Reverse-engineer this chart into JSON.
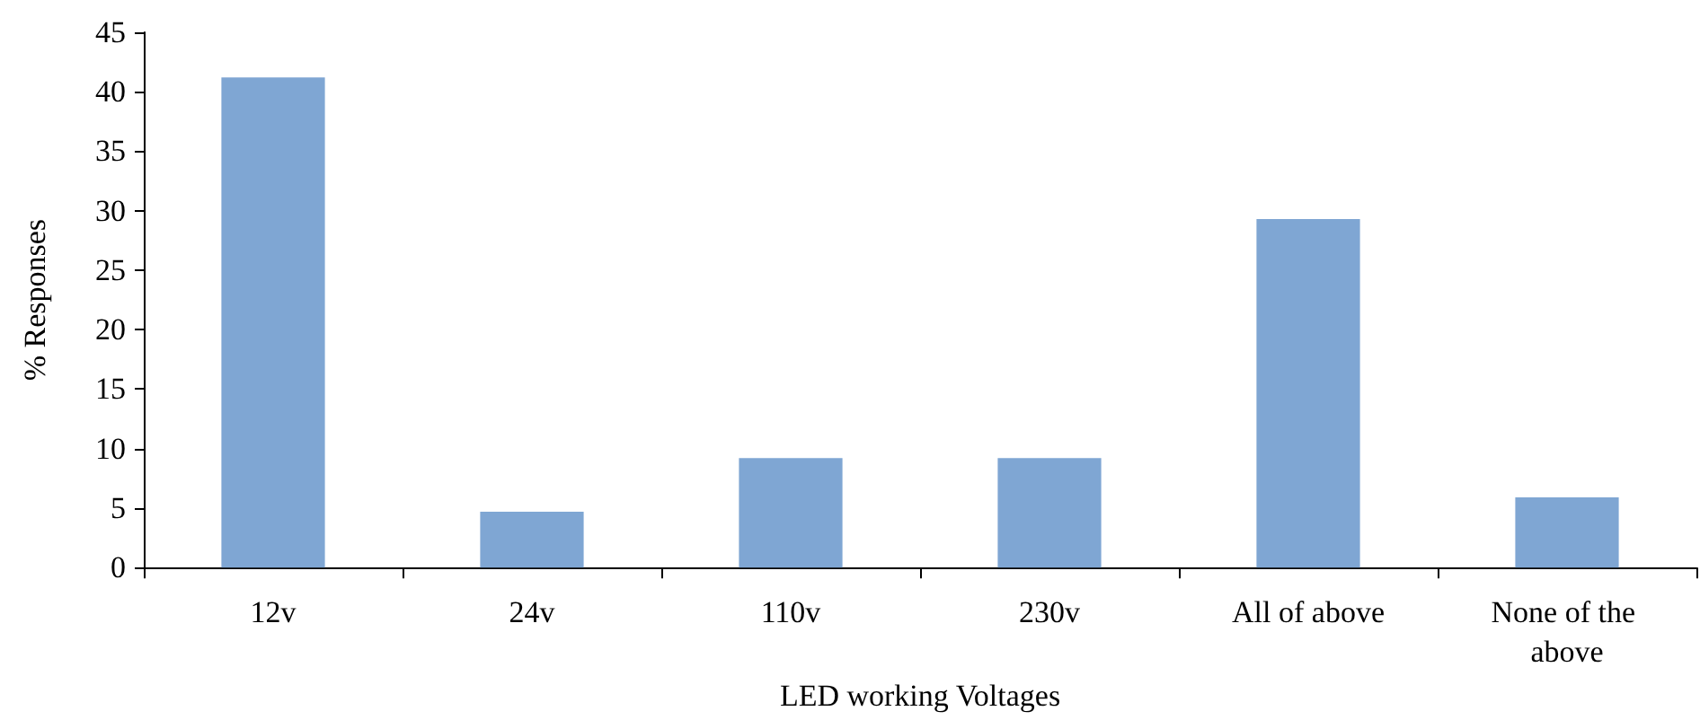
{
  "chart_data": {
    "type": "bar",
    "xlabel": "LED working Voltages",
    "ylabel": "% Responses",
    "categories": [
      "12v",
      "24v",
      "110v",
      "230v",
      "All of above",
      "None of the above"
    ],
    "values": [
      41.2,
      4.7,
      9.2,
      9.2,
      29.3,
      5.9
    ],
    "color": "#7fa6d3",
    "ylim": [
      0,
      45
    ],
    "yticks": [
      0,
      5,
      10,
      15,
      20,
      25,
      30,
      35,
      40,
      45
    ],
    "grid": false
  }
}
